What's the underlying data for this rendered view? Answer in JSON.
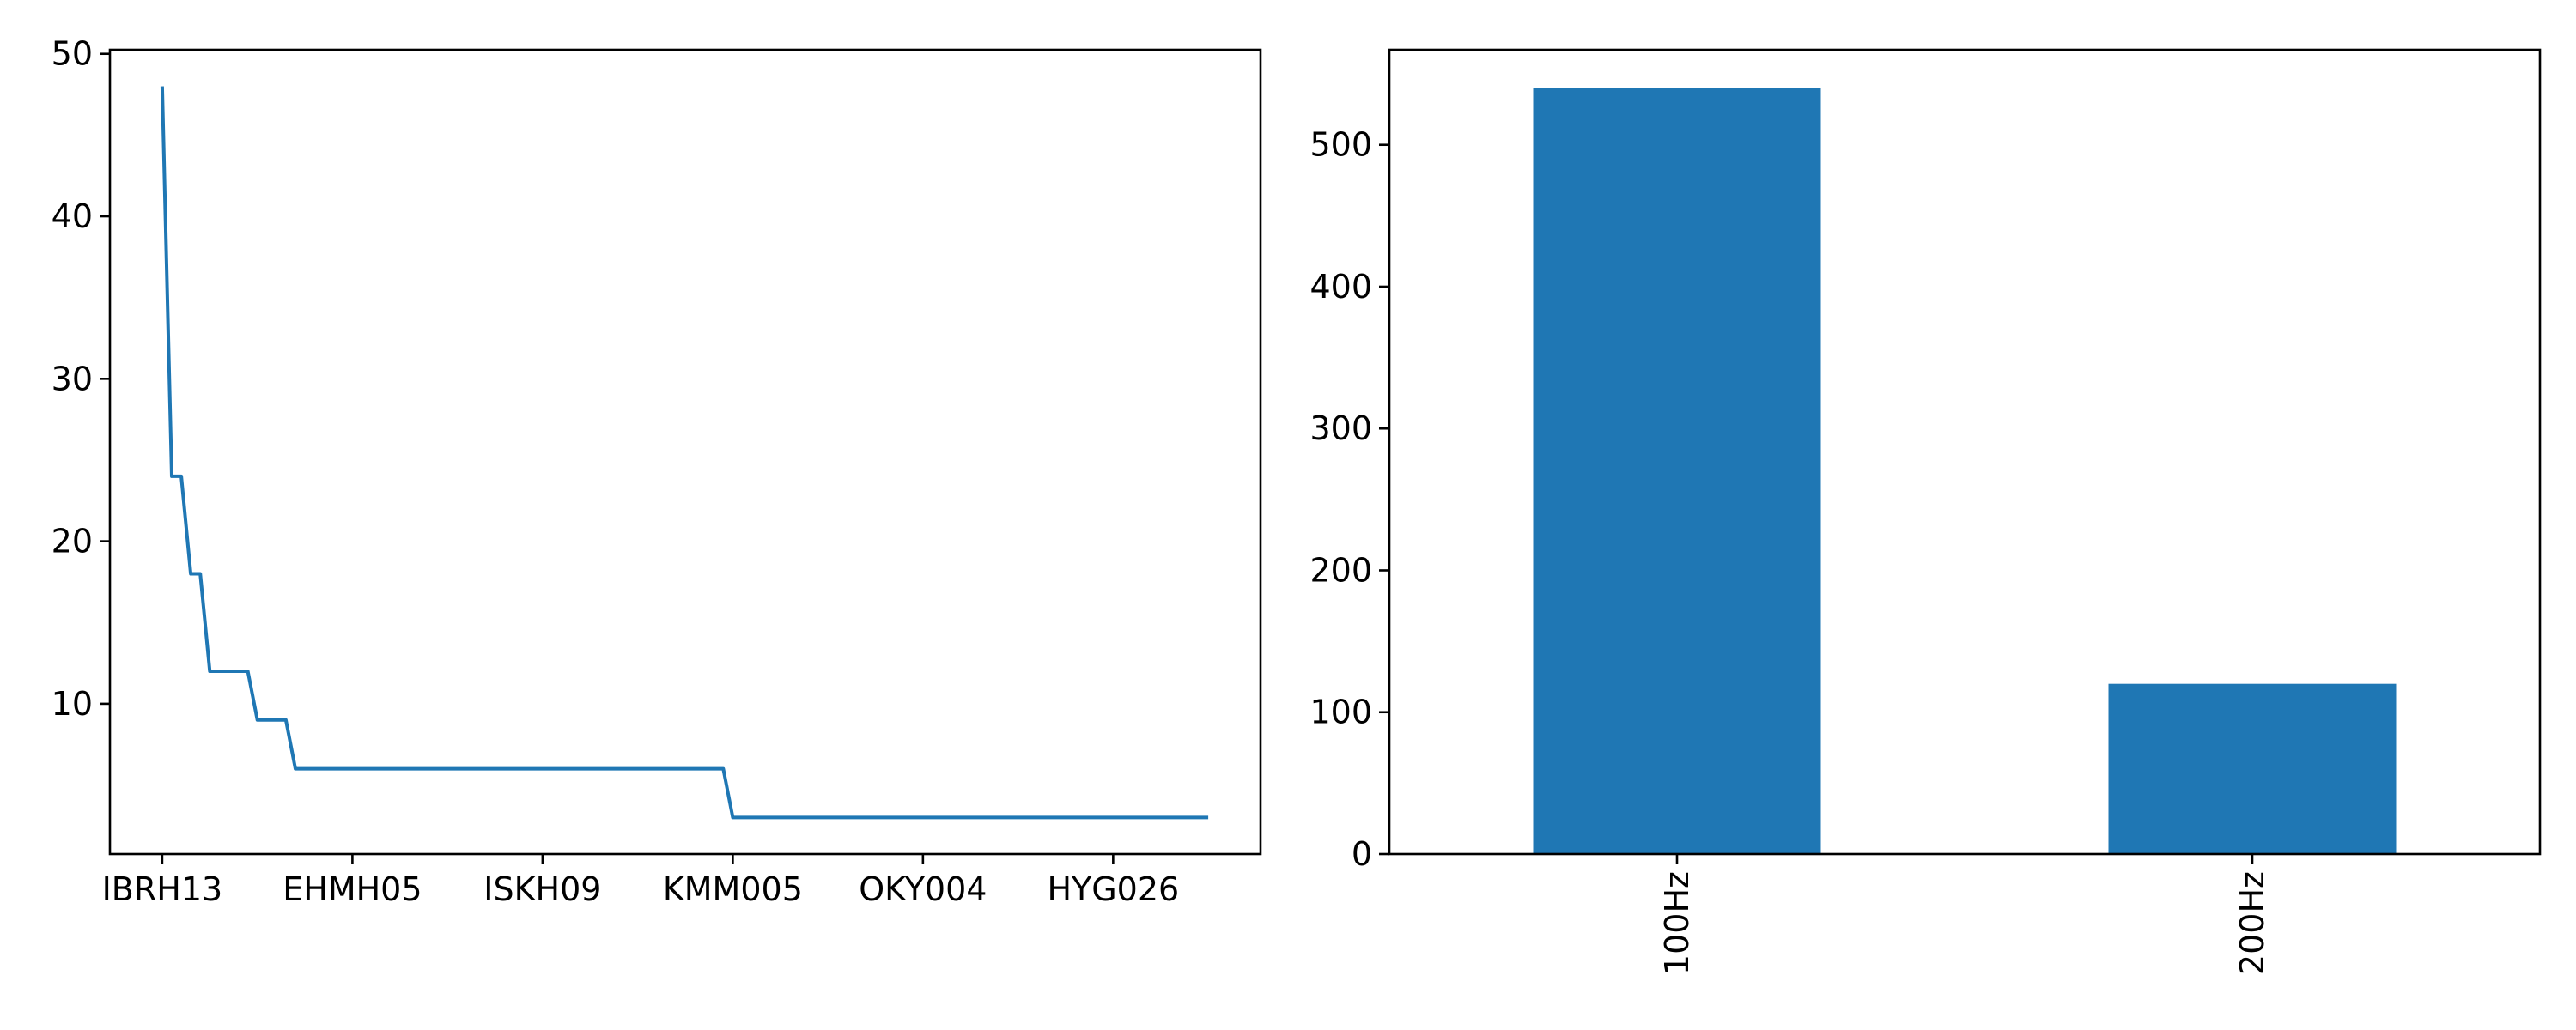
{
  "chart_data": [
    {
      "type": "line",
      "title": "",
      "xlabel": "",
      "ylabel": "",
      "categories": [
        "IBRH13",
        "EHMH05",
        "ISKH09",
        "KMM005",
        "OKY004",
        "HYG026"
      ],
      "x_tick_positions": [
        0,
        20,
        40,
        60,
        80,
        100
      ],
      "xlim": [
        -5.5,
        115.5
      ],
      "ylim": [
        0.75,
        50.25
      ],
      "yticks": [
        10,
        20,
        30,
        40,
        50
      ],
      "color": "#1f77b4",
      "series": [
        {
          "x": [
            0,
            1,
            2,
            3,
            4,
            5,
            6,
            9,
            10,
            11,
            13,
            14,
            59,
            60,
            110
          ],
          "y": [
            48,
            24,
            24,
            18,
            18,
            12,
            12,
            12,
            9,
            9,
            9,
            6,
            6,
            3,
            3
          ]
        }
      ]
    },
    {
      "type": "bar",
      "title": "",
      "xlabel": "",
      "ylabel": "",
      "categories": [
        "100Hz",
        "200Hz"
      ],
      "values": [
        540,
        120
      ],
      "ylim": [
        0,
        567
      ],
      "yticks": [
        0,
        100,
        200,
        300,
        400,
        500
      ],
      "color": "#1f77b4",
      "tick_label_rotation": "vertical"
    }
  ]
}
